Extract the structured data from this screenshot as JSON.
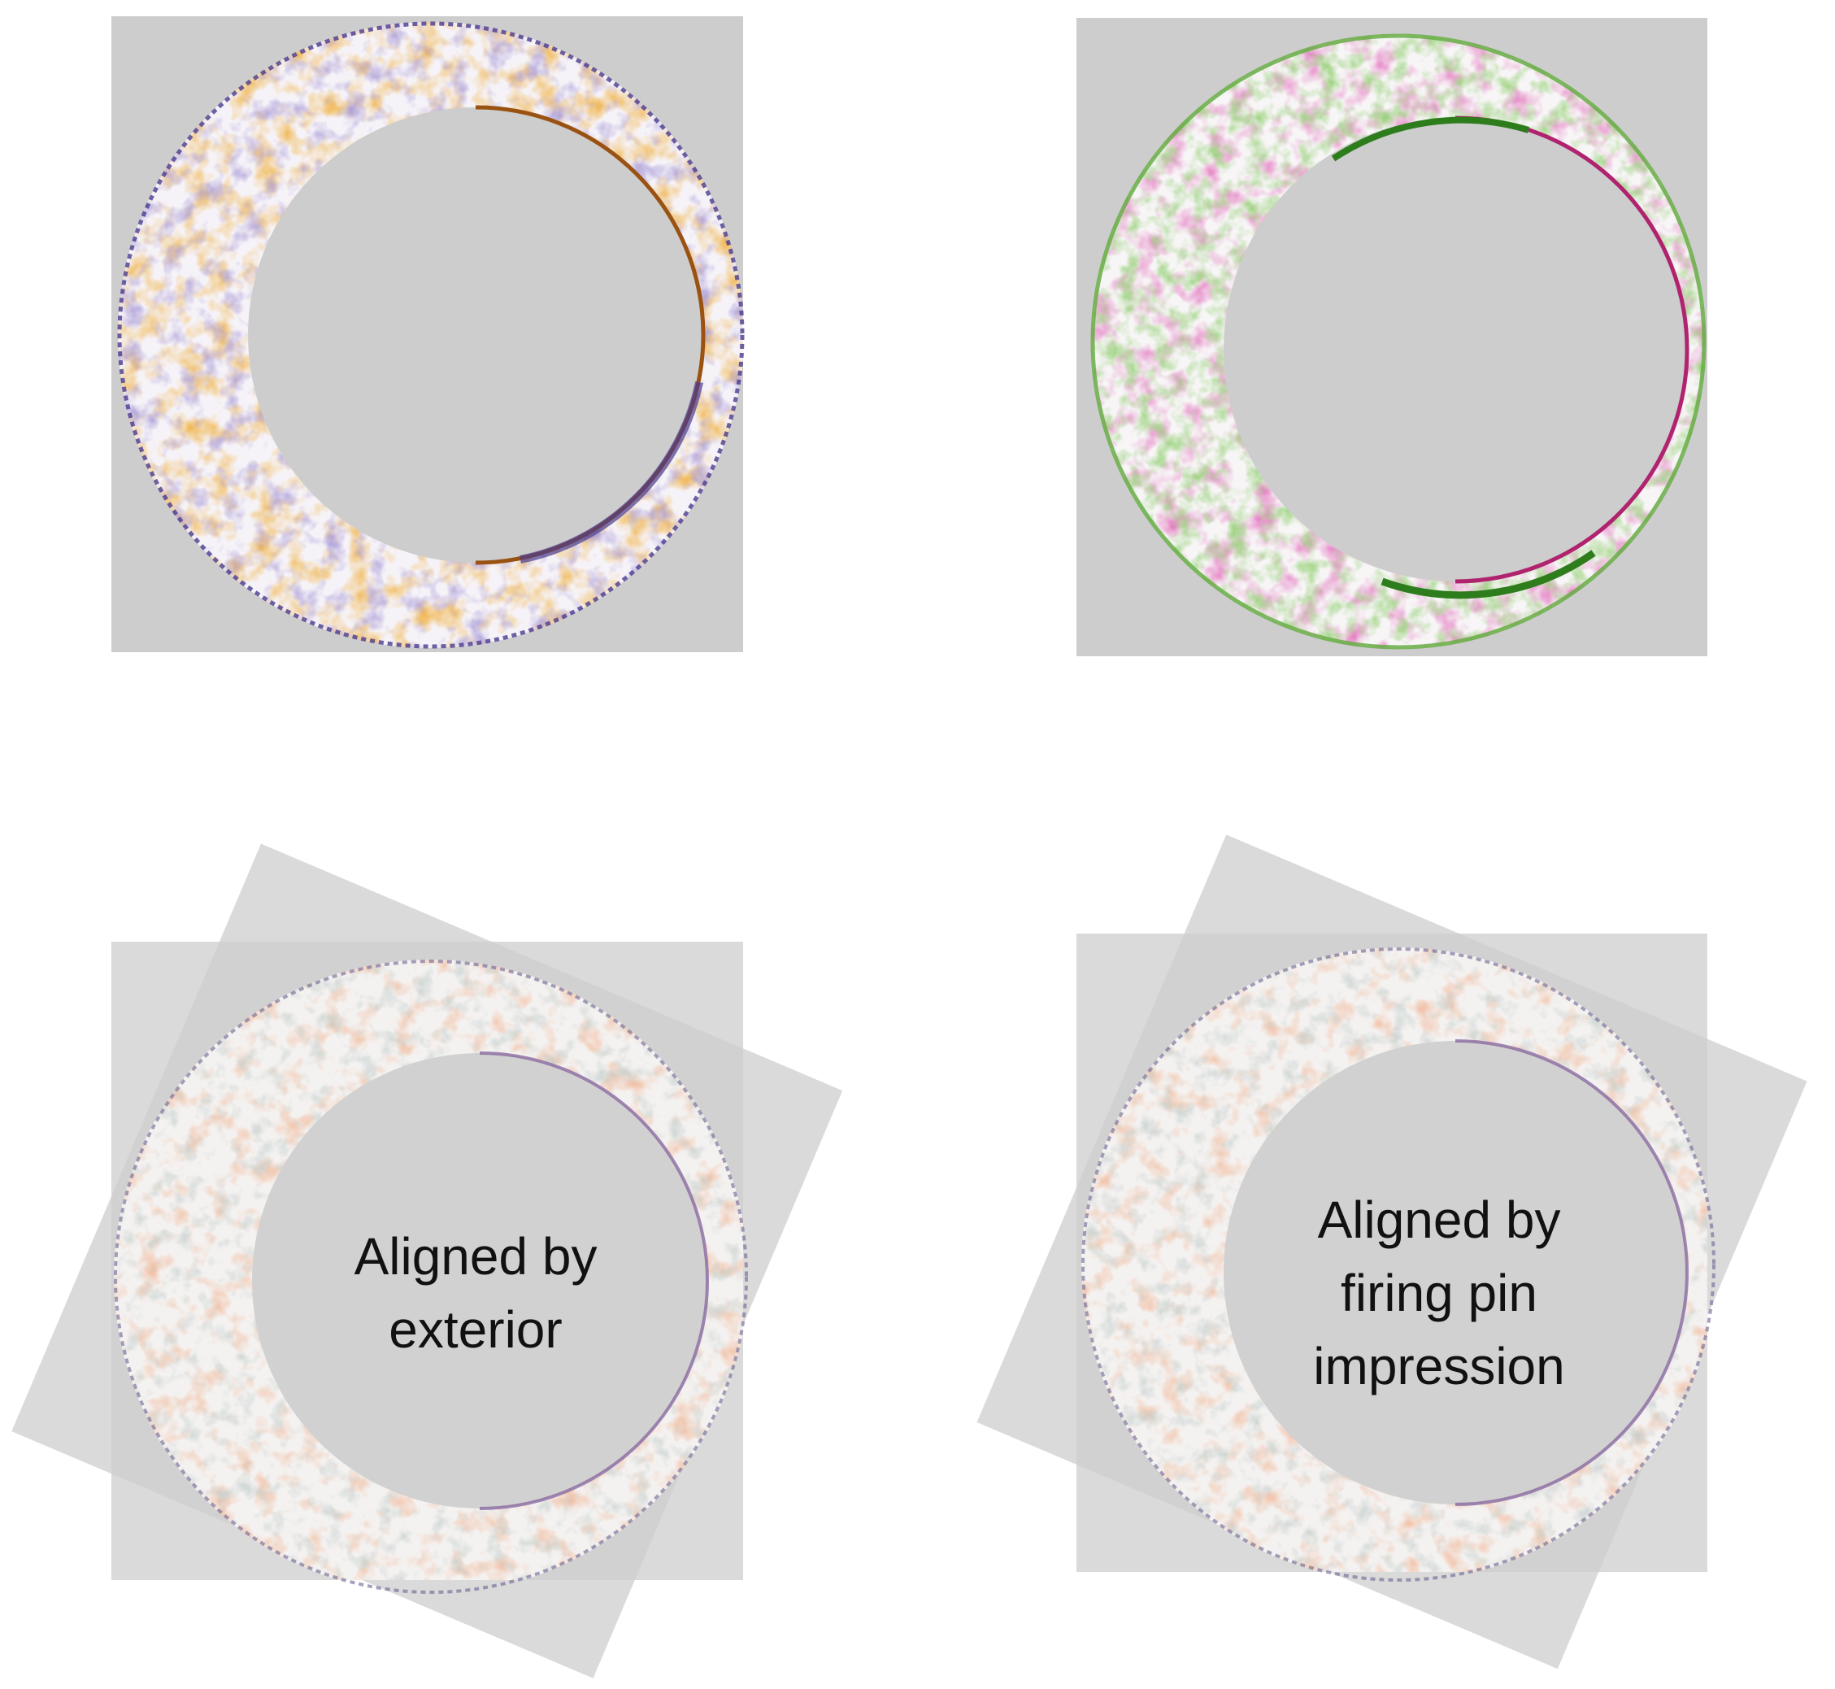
{
  "figure": {
    "panels": [
      {
        "id": "top-left",
        "kind": "single-scan",
        "colormap": "orange-purple diverging",
        "colors": {
          "positive": "#e07d1a",
          "negative": "#6a5ab0",
          "neutral": "#f7f4f8",
          "background": "#cdcdcd"
        }
      },
      {
        "id": "top-right",
        "kind": "single-scan",
        "colormap": "magenta-green diverging",
        "colors": {
          "positive": "#c8338a",
          "negative": "#57a838",
          "neutral": "#f6f6f6",
          "background": "#cdcdcd"
        }
      },
      {
        "id": "bottom-left",
        "kind": "overlay",
        "caption_lines": [
          "Aligned by",
          "exterior"
        ]
      },
      {
        "id": "bottom-right",
        "kind": "overlay",
        "caption_lines": [
          "Aligned by",
          "firing pin",
          "impression"
        ]
      }
    ]
  }
}
